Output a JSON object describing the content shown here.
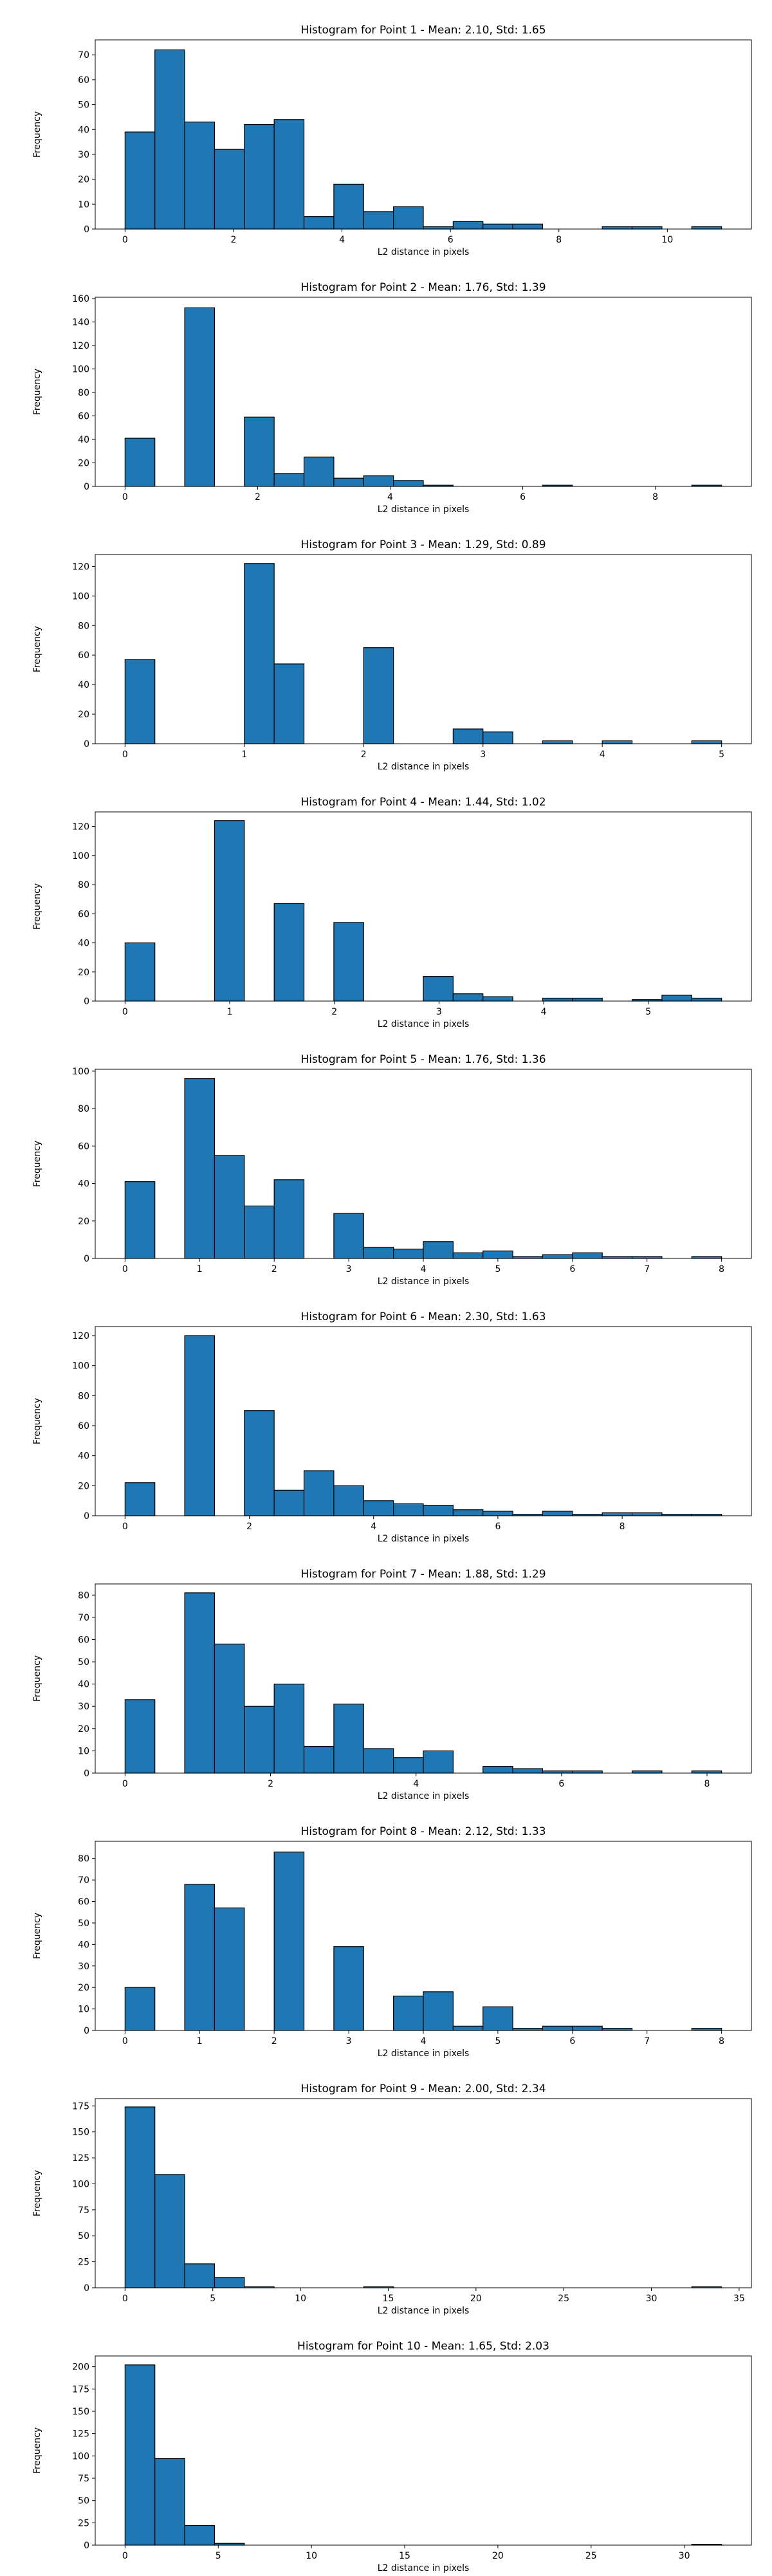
{
  "chart_data": [
    {
      "type": "bar",
      "title": "Histogram for Point 1 - Mean: 2.10, Std: 1.65",
      "xlabel": "L2 distance in pixels",
      "ylabel": "Frequency",
      "xlim": [
        -0.55,
        11.55
      ],
      "ylim": [
        0,
        76
      ],
      "xticks": [
        0,
        2,
        4,
        6,
        8,
        10
      ],
      "yticks": [
        0,
        10,
        20,
        30,
        40,
        50,
        60,
        70
      ],
      "bin_edges": [
        0,
        0.55,
        1.1,
        1.65,
        2.2,
        2.75,
        3.3,
        3.85,
        4.4,
        4.95,
        5.5,
        6.05,
        6.6,
        7.15,
        7.7,
        8.25,
        8.8,
        9.35,
        9.9,
        10.45,
        11.0
      ],
      "values": [
        39,
        72,
        43,
        32,
        42,
        44,
        5,
        18,
        7,
        9,
        1,
        3,
        2,
        2,
        0,
        0,
        1,
        1,
        0,
        1
      ],
      "bar_color": "#1f77b4",
      "grid": false
    },
    {
      "type": "bar",
      "title": "Histogram for Point 2 - Mean: 1.76, Std: 1.39",
      "xlabel": "L2 distance in pixels",
      "ylabel": "Frequency",
      "xlim": [
        -0.45,
        9.45
      ],
      "ylim": [
        0,
        161
      ],
      "xticks": [
        0,
        2,
        4,
        6,
        8
      ],
      "yticks": [
        0,
        20,
        40,
        60,
        80,
        100,
        120,
        140,
        160
      ],
      "bin_edges": [
        0,
        0.45,
        0.9,
        1.35,
        1.8,
        2.25,
        2.7,
        3.15,
        3.6,
        4.05,
        4.5,
        4.95,
        5.4,
        5.85,
        6.3,
        6.75,
        7.2,
        7.65,
        8.1,
        8.55,
        9.0
      ],
      "values": [
        41,
        0,
        152,
        0,
        59,
        11,
        25,
        7,
        9,
        5,
        1,
        0,
        0,
        0,
        1,
        0,
        0,
        0,
        0,
        1
      ],
      "bar_color": "#1f77b4",
      "grid": false
    },
    {
      "type": "bar",
      "title": "Histogram for Point 3 - Mean: 1.29, Std: 0.89",
      "xlabel": "L2 distance in pixels",
      "ylabel": "Frequency",
      "xlim": [
        -0.25,
        5.25
      ],
      "ylim": [
        0,
        128
      ],
      "xticks": [
        0,
        1,
        2,
        3,
        4,
        5
      ],
      "yticks": [
        0,
        20,
        40,
        60,
        80,
        100,
        120
      ],
      "bin_edges": [
        0,
        0.25,
        0.5,
        0.75,
        1.0,
        1.25,
        1.5,
        1.75,
        2.0,
        2.25,
        2.5,
        2.75,
        3.0,
        3.25,
        3.5,
        3.75,
        4.0,
        4.25,
        4.5,
        4.75,
        5.0
      ],
      "values": [
        57,
        0,
        0,
        0,
        122,
        54,
        0,
        0,
        65,
        0,
        0,
        10,
        8,
        0,
        2,
        0,
        2,
        0,
        0,
        2
      ],
      "bar_color": "#1f77b4",
      "grid": false
    },
    {
      "type": "bar",
      "title": "Histogram for Point 4 - Mean: 1.44, Std: 1.02",
      "xlabel": "L2 distance in pixels",
      "ylabel": "Frequency",
      "xlim": [
        -0.285,
        5.985
      ],
      "ylim": [
        0,
        130
      ],
      "xticks": [
        0,
        1,
        2,
        3,
        4,
        5
      ],
      "yticks": [
        0,
        20,
        40,
        60,
        80,
        100,
        120
      ],
      "bin_edges": [
        0,
        0.285,
        0.57,
        0.855,
        1.14,
        1.425,
        1.71,
        1.995,
        2.28,
        2.565,
        2.85,
        3.135,
        3.42,
        3.705,
        3.99,
        4.275,
        4.56,
        4.845,
        5.13,
        5.415,
        5.7
      ],
      "values": [
        40,
        0,
        0,
        124,
        0,
        67,
        0,
        54,
        0,
        0,
        17,
        5,
        3,
        0,
        2,
        2,
        0,
        1,
        4,
        2
      ],
      "bar_color": "#1f77b4",
      "grid": false
    },
    {
      "type": "bar",
      "title": "Histogram for Point 5 - Mean: 1.76, Std: 1.36",
      "xlabel": "L2 distance in pixels",
      "ylabel": "Frequency",
      "xlim": [
        -0.4,
        8.4
      ],
      "ylim": [
        0,
        101
      ],
      "xticks": [
        0,
        1,
        2,
        3,
        4,
        5,
        6,
        7,
        8
      ],
      "yticks": [
        0,
        20,
        40,
        60,
        80,
        100
      ],
      "bin_edges": [
        0,
        0.4,
        0.8,
        1.2,
        1.6,
        2.0,
        2.4,
        2.8,
        3.2,
        3.6,
        4.0,
        4.4,
        4.8,
        5.2,
        5.6,
        6.0,
        6.4,
        6.8,
        7.2,
        7.6,
        8.0
      ],
      "values": [
        41,
        0,
        96,
        55,
        28,
        42,
        0,
        24,
        6,
        5,
        9,
        3,
        4,
        1,
        2,
        3,
        1,
        1,
        0,
        1
      ],
      "bar_color": "#1f77b4",
      "grid": false
    },
    {
      "type": "bar",
      "title": "Histogram for Point 6 - Mean: 2.30, Std: 1.63",
      "xlabel": "L2 distance in pixels",
      "ylabel": "Frequency",
      "xlim": [
        -0.48,
        10.08
      ],
      "ylim": [
        0,
        126
      ],
      "xticks": [
        0,
        2,
        4,
        6,
        8
      ],
      "yticks": [
        0,
        20,
        40,
        60,
        80,
        100,
        120
      ],
      "bin_edges": [
        0,
        0.48,
        0.96,
        1.44,
        1.92,
        2.4,
        2.88,
        3.36,
        3.84,
        4.32,
        4.8,
        5.28,
        5.76,
        6.24,
        6.72,
        7.2,
        7.68,
        8.16,
        8.64,
        9.12,
        9.6
      ],
      "values": [
        22,
        0,
        120,
        0,
        70,
        17,
        30,
        20,
        10,
        8,
        7,
        4,
        3,
        1,
        3,
        1,
        2,
        2,
        1,
        1
      ],
      "bar_color": "#1f77b4",
      "grid": false
    },
    {
      "type": "bar",
      "title": "Histogram for Point 7 - Mean: 1.88, Std: 1.29",
      "xlabel": "L2 distance in pixels",
      "ylabel": "Frequency",
      "xlim": [
        -0.41,
        8.61
      ],
      "ylim": [
        0,
        85
      ],
      "xticks": [
        0,
        2,
        4,
        6,
        8
      ],
      "yticks": [
        0,
        10,
        20,
        30,
        40,
        50,
        60,
        70,
        80
      ],
      "bin_edges": [
        0,
        0.41,
        0.82,
        1.23,
        1.64,
        2.05,
        2.46,
        2.87,
        3.28,
        3.69,
        4.1,
        4.51,
        4.92,
        5.33,
        5.74,
        6.15,
        6.56,
        6.97,
        7.38,
        7.79,
        8.2
      ],
      "values": [
        33,
        0,
        81,
        58,
        30,
        40,
        12,
        31,
        11,
        7,
        10,
        0,
        3,
        2,
        1,
        1,
        0,
        1,
        0,
        1
      ],
      "bar_color": "#1f77b4",
      "grid": false
    },
    {
      "type": "bar",
      "title": "Histogram for Point 8 - Mean: 2.12, Std: 1.33",
      "xlabel": "L2 distance in pixels",
      "ylabel": "Frequency",
      "xlim": [
        -0.4,
        8.4
      ],
      "ylim": [
        0,
        88
      ],
      "xticks": [
        0,
        1,
        2,
        3,
        4,
        5,
        6,
        7,
        8
      ],
      "yticks": [
        0,
        10,
        20,
        30,
        40,
        50,
        60,
        70,
        80
      ],
      "bin_edges": [
        0,
        0.4,
        0.8,
        1.2,
        1.6,
        2.0,
        2.4,
        2.8,
        3.2,
        3.6,
        4.0,
        4.4,
        4.8,
        5.2,
        5.6,
        6.0,
        6.4,
        6.8,
        7.2,
        7.6,
        8.0
      ],
      "values": [
        20,
        0,
        68,
        57,
        0,
        83,
        0,
        39,
        0,
        16,
        18,
        2,
        11,
        1,
        2,
        2,
        1,
        0,
        0,
        1
      ],
      "bar_color": "#1f77b4",
      "grid": false
    },
    {
      "type": "bar",
      "title": "Histogram for Point 9 - Mean: 2.00, Std: 2.34",
      "xlabel": "L2 distance in pixels",
      "ylabel": "Frequency",
      "xlim": [
        -1.7,
        35.7
      ],
      "ylim": [
        0,
        182
      ],
      "xticks": [
        0,
        5,
        10,
        15,
        20,
        25,
        30,
        35
      ],
      "yticks": [
        0,
        25,
        50,
        75,
        100,
        125,
        150,
        175
      ],
      "bin_edges": [
        0,
        1.7,
        3.4,
        5.1,
        6.8,
        8.5,
        10.2,
        11.9,
        13.6,
        15.3,
        17.0,
        18.7,
        20.4,
        22.1,
        23.8,
        25.5,
        27.2,
        28.9,
        30.6,
        32.3,
        34.0
      ],
      "values": [
        174,
        109,
        23,
        10,
        1,
        0,
        0,
        0,
        1,
        0,
        0,
        0,
        0,
        0,
        0,
        0,
        0,
        0,
        0,
        1
      ],
      "bar_color": "#1f77b4",
      "grid": false
    },
    {
      "type": "bar",
      "title": "Histogram for Point 10 - Mean: 1.65, Std: 2.03",
      "xlabel": "L2 distance in pixels",
      "ylabel": "Frequency",
      "xlim": [
        -1.6,
        33.6
      ],
      "ylim": [
        0,
        212
      ],
      "xticks": [
        0,
        5,
        10,
        15,
        20,
        25,
        30
      ],
      "yticks": [
        0,
        25,
        50,
        75,
        100,
        125,
        150,
        175,
        200
      ],
      "bin_edges": [
        0,
        1.6,
        3.2,
        4.8,
        6.4,
        8.0,
        9.6,
        11.2,
        12.8,
        14.4,
        16.0,
        17.6,
        19.2,
        20.8,
        22.4,
        24.0,
        25.6,
        27.2,
        28.8,
        30.4,
        32.0
      ],
      "values": [
        202,
        97,
        22,
        2,
        0,
        0,
        0,
        0,
        0,
        0,
        0,
        0,
        0,
        0,
        0,
        0,
        0,
        0,
        0,
        1
      ],
      "bar_color": "#1f77b4",
      "grid": false
    }
  ]
}
